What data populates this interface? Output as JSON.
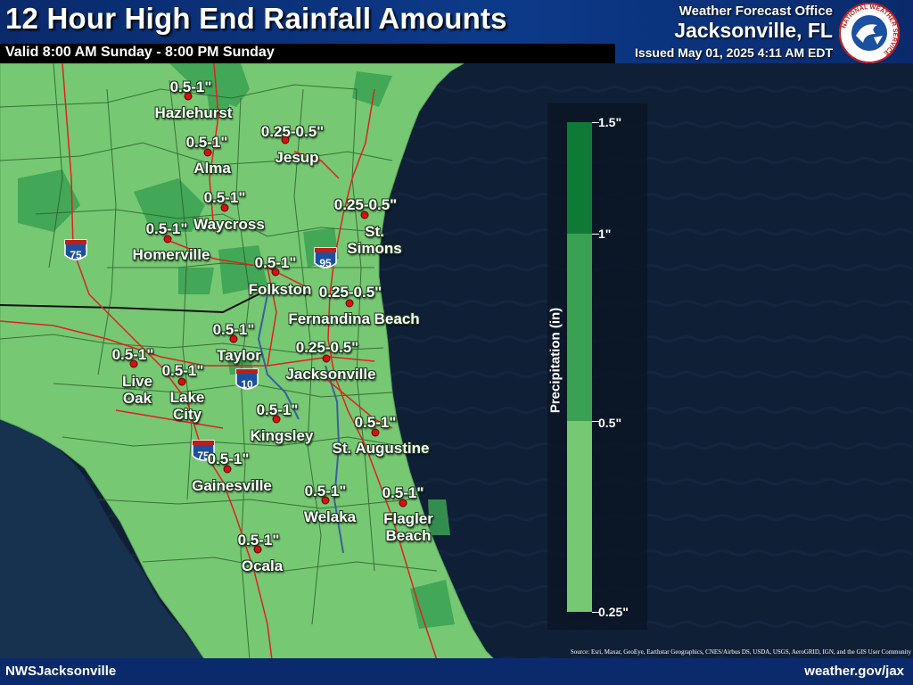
{
  "header": {
    "title": "12 Hour High End Rainfall Amounts",
    "valid": "Valid 8:00 AM Sunday - 8:00 PM Sunday",
    "office_line": "Weather Forecast Office",
    "office_city": "Jacksonville, FL",
    "issued": "Issued May 01, 2025 4:11 AM EDT",
    "logo_text": "NATIONAL WEATHER SERVICE"
  },
  "footer": {
    "left": "NWSJacksonville",
    "right": "weather.gov/jax",
    "source": "Source: Esri, Maxar, GeoEye, Earthstar Geographics, CNES/Airbus DS, USDA, USGS, AeroGRID, IGN, and the GIS User Community"
  },
  "legend": {
    "title": "Precipitation (in)",
    "labels": [
      "1.5\"",
      "1\"",
      "0.5\"",
      "0.25\""
    ],
    "bins": [
      {
        "range": "1-1.5",
        "color": "#0f7a36"
      },
      {
        "range": "0.5-1",
        "color": "#3aa152"
      },
      {
        "range": "0.25-0.5",
        "color": "#76c873"
      }
    ]
  },
  "colors": {
    "land_low": "#76c873",
    "land_mid": "#3aa152",
    "water": "#0d1b2e",
    "roads": "#e02020",
    "header": "#0a2a6b"
  },
  "interstates": [
    "75",
    "95",
    "10",
    "75"
  ],
  "locations": [
    {
      "city": "Hazlehurst",
      "amount": "0.5-1\""
    },
    {
      "city": "Alma",
      "amount": "0.5-1\""
    },
    {
      "city": "Jesup",
      "amount": "0.25-0.5\""
    },
    {
      "city": "Waycross",
      "amount": "0.5-1\""
    },
    {
      "city": "Homerville",
      "amount": "0.5-1\""
    },
    {
      "city": "St. Simons",
      "amount": "0.25-0.5\""
    },
    {
      "city": "Folkston",
      "amount": "0.5-1\""
    },
    {
      "city": "Fernandina Beach",
      "amount": "0.25-0.5\""
    },
    {
      "city": "Taylor",
      "amount": "0.5-1\""
    },
    {
      "city": "Live Oak",
      "amount": "0.5-1\""
    },
    {
      "city": "Lake City",
      "amount": "0.5-1\""
    },
    {
      "city": "Jacksonville",
      "amount": "0.25-0.5\""
    },
    {
      "city": "Kingsley",
      "amount": "0.5-1\""
    },
    {
      "city": "St. Augustine",
      "amount": "0.5-1\""
    },
    {
      "city": "Gainesville",
      "amount": "0.5-1\""
    },
    {
      "city": "Welaka",
      "amount": "0.5-1\""
    },
    {
      "city": "Flagler Beach",
      "amount": "0.5-1\""
    },
    {
      "city": "Ocala",
      "amount": "0.5-1\""
    }
  ]
}
